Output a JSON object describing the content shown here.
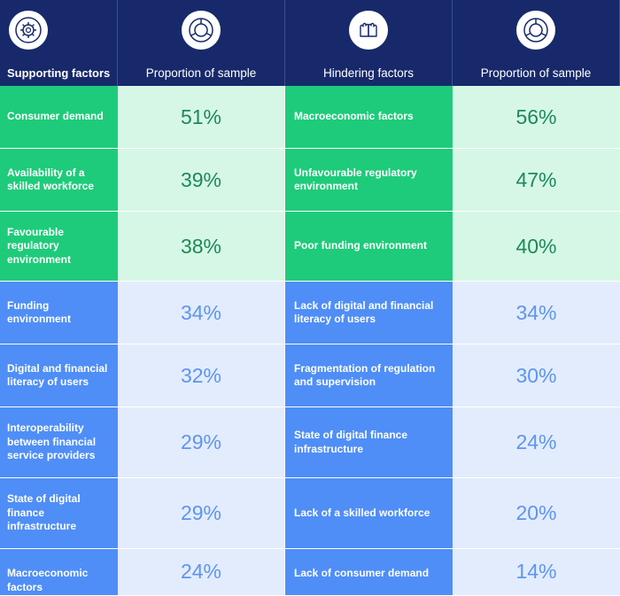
{
  "headers": {
    "supporting": "Supporting factors",
    "proportion_left": "Proportion of sample",
    "hindering": "Hindering factors",
    "proportion_right": "Proportion of sample",
    "icons": [
      "gear-cycle-icon",
      "donut-chart-icon",
      "raised-hands-icon",
      "donut-chart-icon"
    ]
  },
  "colors": {
    "header_bg": "#17296a",
    "green_factor": "#1ecb7a",
    "green_value_bg": "#d6f7e6",
    "green_text": "#1c8a55",
    "blue_factor": "#4f8ef7",
    "blue_value_bg": "#e3ecfd",
    "blue_text": "#5d95f0"
  },
  "chart_data": {
    "type": "table",
    "columns": [
      "Supporting factors",
      "Proportion of sample",
      "Hindering factors",
      "Proportion of sample"
    ],
    "rows": [
      {
        "supporting": "Consumer demand",
        "supporting_pct": "51%",
        "hindering": "Macroeconomic factors",
        "hindering_pct": "56%"
      },
      {
        "supporting": "Availability of a skilled workforce",
        "supporting_pct": "39%",
        "hindering": "Unfavourable regulatory environment",
        "hindering_pct": "47%"
      },
      {
        "supporting": "Favourable regulatory environment",
        "supporting_pct": "38%",
        "hindering": "Poor funding environment",
        "hindering_pct": "40%"
      },
      {
        "supporting": "Funding environment",
        "supporting_pct": "34%",
        "hindering": "Lack of digital and financial literacy of users",
        "hindering_pct": "34%"
      },
      {
        "supporting": "Digital and financial literacy of users",
        "supporting_pct": "32%",
        "hindering": "Fragmentation of regulation and supervision",
        "hindering_pct": "30%"
      },
      {
        "supporting": "Interoperability between financial service providers",
        "supporting_pct": "29%",
        "hindering": "State of digital finance infrastructure",
        "hindering_pct": "24%"
      },
      {
        "supporting": "State of digital finance infrastructure",
        "supporting_pct": "29%",
        "hindering": "Lack of a skilled workforce",
        "hindering_pct": "20%"
      },
      {
        "supporting": "Macroeconomic factors",
        "supporting_pct": "24%",
        "hindering": "Lack of consumer demand",
        "hindering_pct": "14%"
      }
    ]
  }
}
